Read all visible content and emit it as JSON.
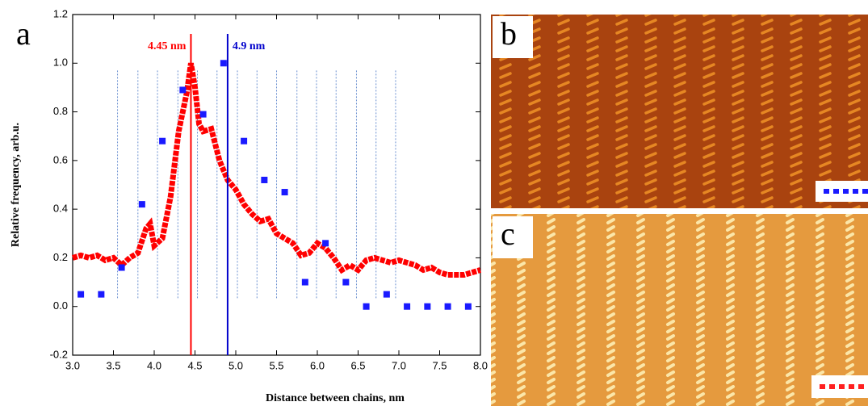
{
  "panel_labels": [
    "a",
    "b",
    "c"
  ],
  "chart_data": {
    "type": "line",
    "xlabel": "Distance between chains, nm",
    "ylabel": "Relative frequency, arb.u.",
    "xlim": [
      3.0,
      8.0
    ],
    "ylim": [
      -0.2,
      1.2
    ],
    "xticks": [
      {
        "value": 3.0,
        "label": "3.0"
      },
      {
        "value": 3.5,
        "label": "3.5"
      },
      {
        "value": 4.0,
        "label": "4.0"
      },
      {
        "value": 4.5,
        "label": "4.5"
      },
      {
        "value": 5.0,
        "label": "5.0"
      },
      {
        "value": 5.5,
        "label": "5.5"
      },
      {
        "value": 6.0,
        "label": "6.0"
      },
      {
        "value": 6.5,
        "label": "6.5"
      },
      {
        "value": 7.0,
        "label": "7.0"
      },
      {
        "value": 7.5,
        "label": "7.5"
      },
      {
        "value": 8.0,
        "label": "8.0"
      }
    ],
    "yticks": [
      {
        "value": -0.2,
        "label": "-0.2"
      },
      {
        "value": 0.0,
        "label": "0.0"
      },
      0.2,
      0.4,
      0.6,
      0.8,
      {
        "value": 1.0,
        "label": "1.0"
      },
      1.2
    ],
    "dotted_lines": [
      3.55,
      3.8,
      4.04,
      4.29,
      4.53,
      4.77,
      5.02,
      5.26,
      5.5,
      5.75,
      5.99,
      6.23,
      6.48,
      6.72,
      6.96
    ],
    "markers": [
      {
        "x": 4.45,
        "label": "4.45 nm",
        "color": "#ff0000"
      },
      {
        "x": 4.9,
        "label": "4.9 nm",
        "color": "#0000cc"
      }
    ],
    "series": [
      {
        "type": "line",
        "color": "#ff0000",
        "x": [
          3.0,
          3.1,
          3.2,
          3.3,
          3.4,
          3.5,
          3.6,
          3.7,
          3.8,
          3.9,
          3.95,
          4.0,
          4.1,
          4.2,
          4.3,
          4.4,
          4.45,
          4.5,
          4.55,
          4.6,
          4.7,
          4.8,
          4.9,
          5.0,
          5.1,
          5.2,
          5.3,
          5.4,
          5.5,
          5.6,
          5.7,
          5.8,
          5.9,
          6.0,
          6.1,
          6.2,
          6.3,
          6.4,
          6.5,
          6.6,
          6.7,
          6.8,
          6.9,
          7.0,
          7.1,
          7.2,
          7.3,
          7.4,
          7.5,
          7.6,
          7.7,
          7.8,
          7.9,
          8.0
        ],
        "values": [
          0.2,
          0.21,
          0.2,
          0.21,
          0.19,
          0.2,
          0.17,
          0.2,
          0.22,
          0.32,
          0.34,
          0.25,
          0.28,
          0.45,
          0.72,
          0.88,
          1.0,
          0.9,
          0.75,
          0.72,
          0.73,
          0.6,
          0.52,
          0.48,
          0.42,
          0.38,
          0.35,
          0.36,
          0.3,
          0.28,
          0.26,
          0.21,
          0.22,
          0.26,
          0.24,
          0.2,
          0.15,
          0.17,
          0.15,
          0.19,
          0.2,
          0.19,
          0.18,
          0.19,
          0.18,
          0.17,
          0.15,
          0.16,
          0.14,
          0.13,
          0.13,
          0.13,
          0.14,
          0.15
        ]
      },
      {
        "type": "scatter",
        "color": "#1a1aff",
        "x": [
          3.1,
          3.35,
          3.6,
          3.85,
          4.1,
          4.35,
          4.6,
          4.85,
          5.1,
          5.35,
          5.6,
          5.85,
          6.1,
          6.35,
          6.6,
          6.85,
          7.1,
          7.35,
          7.6,
          7.85
        ],
        "values": [
          0.05,
          0.05,
          0.16,
          0.42,
          0.68,
          0.89,
          0.79,
          1.0,
          0.68,
          0.52,
          0.47,
          0.1,
          0.26,
          0.1,
          0.0,
          0.05,
          0.0,
          0.0,
          0.0,
          0.0
        ]
      }
    ]
  }
}
